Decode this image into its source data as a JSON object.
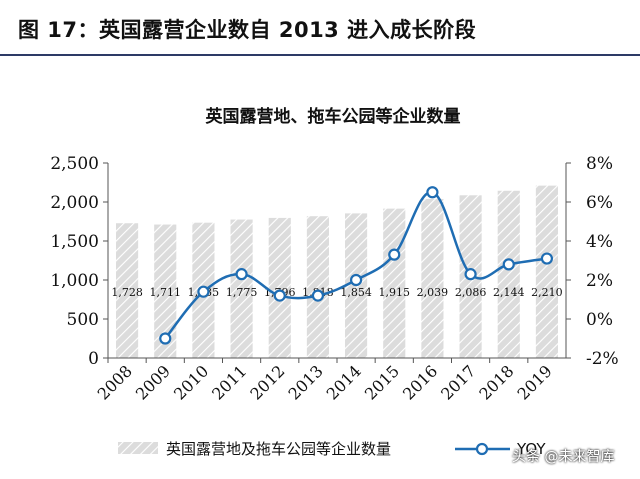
{
  "figure": {
    "title": "图 17：英国露营企业数自 2013 进入成长阶段"
  },
  "chart_data": {
    "type": "bar",
    "title": "英国露营地、拖车公园等企业数量",
    "categories": [
      "2008",
      "2009",
      "2010",
      "2011",
      "2012",
      "2013",
      "2014",
      "2015",
      "2016",
      "2017",
      "2018",
      "2019"
    ],
    "series": [
      {
        "name": "英国露营地及拖车公园等企业数量",
        "type": "bar",
        "axis": "left",
        "values": [
          1728,
          1711,
          1735,
          1775,
          1796,
          1818,
          1854,
          1915,
          2039,
          2086,
          2144,
          2210
        ],
        "labels": [
          "1,728",
          "1,711",
          "1,735",
          "1,775",
          "1,796",
          "1,818",
          "1,854",
          "1,915",
          "2,039",
          "2,086",
          "2,144",
          "2,210"
        ]
      },
      {
        "name": "YOY",
        "type": "line",
        "axis": "right",
        "values": [
          null,
          -1.0,
          1.4,
          2.3,
          1.2,
          1.2,
          2.0,
          3.3,
          6.5,
          2.3,
          2.8,
          3.1
        ]
      }
    ],
    "y_left": {
      "min": 0,
      "max": 2500,
      "ticks": [
        "0",
        "500",
        "1,000",
        "1,500",
        "2,000",
        "2,500"
      ]
    },
    "y_right": {
      "min": -2,
      "max": 8,
      "ticks": [
        "-2%",
        "0%",
        "2%",
        "4%",
        "6%",
        "8%"
      ]
    },
    "legend_position": "bottom",
    "colors": {
      "bar_fill": "#dcdcdc",
      "bar_hatch": "#ffffff",
      "line": "#1f6db3",
      "marker_fill": "#ffffff",
      "axis": "#555555"
    }
  },
  "watermark": "头条 @未来智库"
}
